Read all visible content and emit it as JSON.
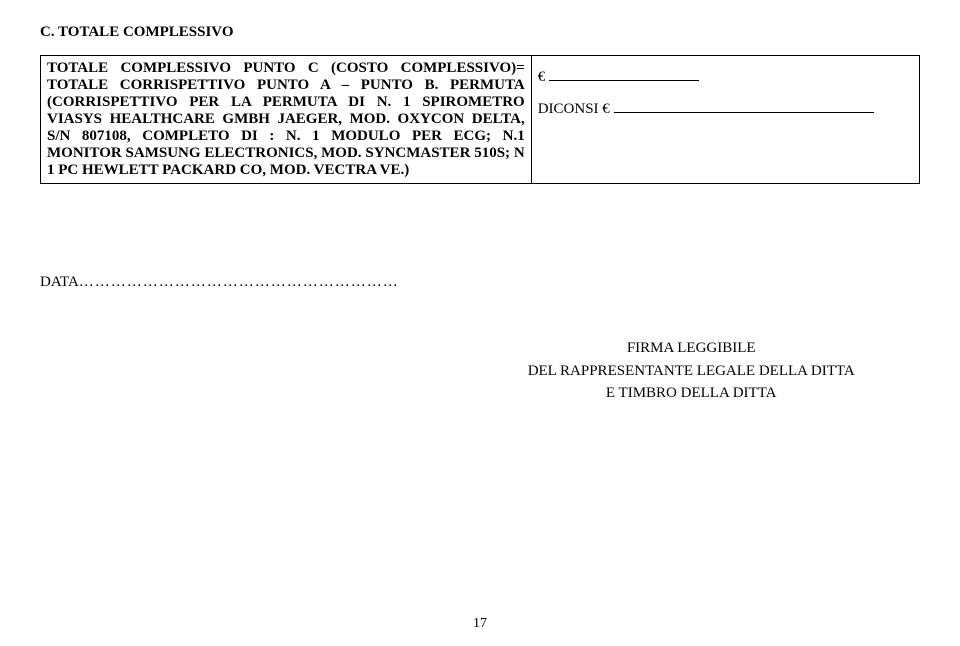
{
  "section_title": "C. TOTALE  COMPLESSIVO",
  "cell_left": "TOTALE COMPLESSIVO PUNTO C (COSTO COMPLESSIVO)= TOTALE CORRISPETTIVO PUNTO A – PUNTO B. PERMUTA (CORRISPETTIVO PER LA PERMUTA DI N. 1 SPIROMETRO VIASYS HEALTHCARE GMBH JAEGER, MOD. OXYCON DELTA, S/N 807108, COMPLETO DI : N. 1 MODULO PER ECG; N.1 MONITOR SAMSUNG ELECTRONICS, MOD. SYNCMASTER 510S; N 1 PC HEWLETT PACKARD CO, MOD. VECTRA VE.)",
  "euro_prefix": "€",
  "diconsi_prefix": "DICONSI €",
  "data_label": "DATA",
  "dots": "……………………………………………………",
  "signature_line1": "FIRMA LEGGIBILE",
  "signature_line2": "DEL RAPPRESENTANTE LEGALE DELLA DITTA",
  "signature_line3": "E TIMBRO DELLA DITTA",
  "page_number": "17"
}
